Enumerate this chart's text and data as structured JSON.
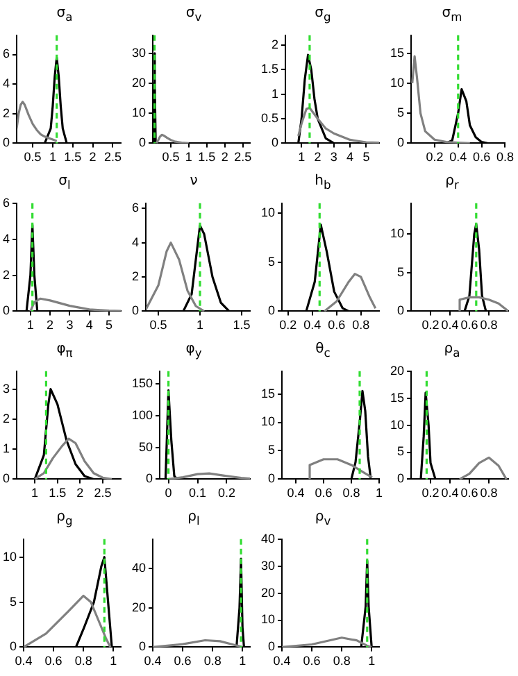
{
  "chart_data": [
    {
      "type": "line",
      "title": "σ$_{a}$",
      "xlim": [
        0.1,
        2.7
      ],
      "xticks": [
        0.5,
        1,
        1.5,
        2,
        2.5
      ],
      "ylim": [
        0,
        7.3
      ],
      "yticks": [
        0,
        2,
        4,
        6
      ],
      "ref_lines": [
        {
          "axis": "x",
          "value": 1.1,
          "color": "#33dd33",
          "line_style": "dashed"
        }
      ],
      "series": [
        {
          "color": "#808080",
          "x": [
            0.1,
            0.15,
            0.2,
            0.25,
            0.3,
            0.4,
            0.5,
            0.6,
            0.7,
            0.8,
            0.9,
            1.0,
            1.1
          ],
          "values": [
            1.0,
            2.0,
            2.6,
            2.8,
            2.6,
            1.9,
            1.3,
            0.9,
            0.6,
            0.45,
            0.35,
            0.25,
            0.15
          ]
        },
        {
          "color": "#000000",
          "x": [
            0.8,
            0.95,
            1.0,
            1.05,
            1.1,
            1.15,
            1.2,
            1.25,
            1.35
          ],
          "values": [
            0,
            1,
            2.5,
            4.5,
            5.8,
            4.5,
            2.5,
            1,
            0
          ]
        }
      ]
    },
    {
      "type": "line",
      "title": "σ$_{v}$",
      "xlim": [
        0,
        2.7
      ],
      "xticks": [
        0.5,
        1,
        1.5,
        2,
        2.5
      ],
      "ylim": [
        0,
        36
      ],
      "yticks": [
        0,
        10,
        20,
        30
      ],
      "ref_lines": [
        {
          "axis": "x",
          "value": 0.05,
          "color": "#33dd33",
          "line_style": "dashed"
        }
      ],
      "series": [
        {
          "color": "#808080",
          "x": [
            0.1,
            0.15,
            0.2,
            0.25,
            0.3,
            0.4,
            0.5,
            0.6,
            0.8,
            1.0
          ],
          "values": [
            0,
            1,
            2.2,
            2.8,
            2.6,
            1.8,
            1.1,
            0.6,
            0.2,
            0
          ]
        },
        {
          "color": "#000000",
          "x": [
            0.02,
            0.04,
            0.05,
            0.06,
            0.08
          ],
          "values": [
            0,
            20,
            30,
            20,
            0
          ]
        }
      ]
    },
    {
      "type": "line",
      "title": "σ$_{g}$",
      "xlim": [
        0,
        5.8
      ],
      "xticks": [
        1,
        2,
        3,
        4,
        5
      ],
      "ylim": [
        0,
        2.2
      ],
      "yticks": [
        0,
        0.5,
        1,
        1.5,
        2
      ],
      "ref_lines": [
        {
          "axis": "x",
          "value": 1.5,
          "color": "#33dd33",
          "line_style": "dashed"
        }
      ],
      "series": [
        {
          "color": "#808080",
          "x": [
            0.8,
            1.0,
            1.3,
            1.5,
            2.0,
            2.5,
            3.0,
            4.0,
            5.0,
            5.8
          ],
          "values": [
            0.15,
            0.4,
            0.7,
            0.72,
            0.5,
            0.3,
            0.2,
            0.07,
            0.02,
            0.01
          ]
        },
        {
          "color": "#000000",
          "x": [
            0.8,
            1.0,
            1.2,
            1.4,
            1.6,
            1.8,
            2.0,
            2.5,
            3.0
          ],
          "values": [
            0,
            0.5,
            1.3,
            1.8,
            1.5,
            0.9,
            0.5,
            0.1,
            0
          ]
        }
      ]
    },
    {
      "type": "line",
      "title": "σ$_{m}$",
      "xlim": [
        0,
        0.8
      ],
      "xticks": [
        0.2,
        0.4,
        0.6,
        0.8
      ],
      "ylim": [
        0,
        18
      ],
      "yticks": [
        0,
        5,
        10,
        15
      ],
      "ref_lines": [
        {
          "axis": "x",
          "value": 0.4,
          "color": "#33dd33",
          "line_style": "dashed"
        }
      ],
      "series": [
        {
          "color": "#808080",
          "x": [
            0.01,
            0.03,
            0.05,
            0.08,
            0.12,
            0.2,
            0.3,
            0.4,
            0.5
          ],
          "values": [
            10,
            14.5,
            11,
            5,
            2,
            0.6,
            0.2,
            0.1,
            0
          ]
        },
        {
          "color": "#000000",
          "x": [
            0.3,
            0.35,
            0.4,
            0.43,
            0.47,
            0.5,
            0.55,
            0.6,
            0.65
          ],
          "values": [
            0,
            0.5,
            5,
            9,
            7,
            3,
            1,
            0.2,
            0
          ]
        }
      ]
    },
    {
      "type": "line",
      "title": "σ$_{l}$",
      "xlim": [
        0.3,
        5.6
      ],
      "xticks": [
        1,
        2,
        3,
        4,
        5
      ],
      "ylim": [
        0,
        6
      ],
      "yticks": [
        0,
        2,
        4,
        6
      ],
      "ref_lines": [
        {
          "axis": "x",
          "value": 1.1,
          "color": "#33dd33",
          "line_style": "dashed"
        }
      ],
      "series": [
        {
          "color": "#808080",
          "x": [
            1.0,
            1.2,
            1.5,
            2.0,
            3.0,
            4.0,
            5.0,
            5.6
          ],
          "values": [
            0,
            0.5,
            0.7,
            0.6,
            0.3,
            0.1,
            0.03,
            0.01
          ]
        },
        {
          "color": "#000000",
          "x": [
            0.8,
            1.0,
            1.1,
            1.2,
            1.35
          ],
          "values": [
            0,
            2,
            4.8,
            2,
            0
          ]
        }
      ]
    },
    {
      "type": "line",
      "title": "ν",
      "xlim": [
        0.35,
        1.6
      ],
      "xticks": [
        0.5,
        1,
        1.5
      ],
      "ylim": [
        0,
        6.3
      ],
      "yticks": [
        0,
        2,
        4,
        6
      ],
      "ref_lines": [
        {
          "axis": "x",
          "value": 1.0,
          "color": "#33dd33",
          "line_style": "dashed"
        }
      ],
      "series": [
        {
          "color": "#808080",
          "x": [
            0.35,
            0.5,
            0.6,
            0.65,
            0.75,
            0.85,
            0.95,
            1.05
          ],
          "values": [
            0.1,
            1.5,
            3.5,
            4,
            3,
            1.2,
            0.3,
            0
          ]
        },
        {
          "color": "#000000",
          "x": [
            0.8,
            0.9,
            0.95,
            1.0,
            1.05,
            1.15,
            1.25,
            1.35
          ],
          "values": [
            0,
            1,
            3,
            5,
            4.5,
            2,
            0.5,
            0
          ]
        }
      ]
    },
    {
      "type": "line",
      "title": "h$_{b}$",
      "xlim": [
        0.15,
        0.95
      ],
      "xticks": [
        0.2,
        0.4,
        0.6,
        0.8
      ],
      "ylim": [
        0,
        11
      ],
      "yticks": [
        0,
        5,
        10
      ],
      "ref_lines": [
        {
          "axis": "x",
          "value": 0.46,
          "color": "#33dd33",
          "line_style": "dashed"
        }
      ],
      "series": [
        {
          "color": "#808080",
          "x": [
            0.5,
            0.6,
            0.7,
            0.75,
            0.8,
            0.87,
            0.92
          ],
          "values": [
            0,
            1,
            3,
            3.8,
            3.5,
            1.5,
            0.3
          ]
        },
        {
          "color": "#000000",
          "x": [
            0.35,
            0.42,
            0.47,
            0.52,
            0.58,
            0.65,
            0.7
          ],
          "values": [
            0,
            3,
            8.8,
            6,
            2,
            0.3,
            0
          ]
        }
      ]
    },
    {
      "type": "line",
      "title": "ρ$_{r}$",
      "xlim": [
        0,
        1
      ],
      "xticks": [
        0.2,
        0.4,
        0.6,
        0.8
      ],
      "ylim": [
        0,
        14
      ],
      "yticks": [
        0,
        5,
        10
      ],
      "ref_lines": [
        {
          "axis": "x",
          "value": 0.67,
          "color": "#33dd33",
          "line_style": "dashed"
        }
      ],
      "series": [
        {
          "color": "#808080",
          "x": [
            0.5,
            0.5,
            0.6,
            0.7,
            0.8,
            0.9,
            1.0
          ],
          "values": [
            0,
            1.5,
            1.8,
            1.8,
            1.5,
            1,
            0
          ]
        },
        {
          "color": "#000000",
          "x": [
            0.55,
            0.6,
            0.65,
            0.67,
            0.7,
            0.73,
            0.77
          ],
          "values": [
            0,
            2,
            10,
            11.3,
            8,
            2,
            0
          ]
        }
      ]
    },
    {
      "type": "line",
      "title": "φ$_{π}$",
      "xlim": [
        0.6,
        2.9
      ],
      "xticks": [
        1,
        1.5,
        2,
        2.5
      ],
      "ylim": [
        0,
        3.6
      ],
      "yticks": [
        0,
        1,
        2,
        3
      ],
      "ref_lines": [
        {
          "axis": "x",
          "value": 1.25,
          "color": "#33dd33",
          "line_style": "dashed"
        }
      ],
      "series": [
        {
          "color": "#808080",
          "x": [
            1.0,
            1.2,
            1.4,
            1.6,
            1.75,
            1.9,
            2.1,
            2.3,
            2.5,
            2.7
          ],
          "values": [
            0,
            0.2,
            0.7,
            1.1,
            1.35,
            1.2,
            0.6,
            0.2,
            0.05,
            0
          ]
        },
        {
          "color": "#000000",
          "x": [
            1.0,
            1.2,
            1.3,
            1.35,
            1.5,
            1.7,
            1.9,
            2.1,
            2.3
          ],
          "values": [
            0,
            0.8,
            2.5,
            3,
            2.5,
            1.3,
            0.5,
            0.1,
            0
          ]
        }
      ]
    },
    {
      "type": "line",
      "title": "φ$_{y}$",
      "xlim": [
        -0.03,
        0.28
      ],
      "xticks": [
        0,
        0.1,
        0.2
      ],
      "ylim": [
        0,
        170
      ],
      "yticks": [
        0,
        50,
        100,
        150
      ],
      "ref_lines": [
        {
          "axis": "x",
          "value": 0,
          "color": "#33dd33",
          "line_style": "dashed"
        }
      ],
      "series": [
        {
          "color": "#808080",
          "x": [
            0,
            0.05,
            0.1,
            0.14,
            0.2,
            0.25,
            0.28
          ],
          "values": [
            0,
            3,
            8,
            9,
            5,
            2,
            1
          ]
        },
        {
          "color": "#000000",
          "x": [
            -0.01,
            0,
            0.01,
            0.02,
            0.03
          ],
          "values": [
            0,
            140,
            60,
            5,
            0
          ]
        }
      ]
    },
    {
      "type": "line",
      "title": "θ$_{c}$",
      "xlim": [
        0.3,
        1.0
      ],
      "xticks": [
        0.4,
        0.6,
        0.8,
        1
      ],
      "ylim": [
        0,
        19
      ],
      "yticks": [
        0,
        5,
        10,
        15
      ],
      "ref_lines": [
        {
          "axis": "x",
          "value": 0.86,
          "color": "#33dd33",
          "line_style": "dashed"
        }
      ],
      "series": [
        {
          "color": "#808080",
          "x": [
            0.5,
            0.5,
            0.6,
            0.7,
            0.8,
            0.9,
            0.95
          ],
          "values": [
            0,
            2.5,
            3.5,
            3.5,
            2.5,
            1,
            0.3
          ]
        },
        {
          "color": "#000000",
          "x": [
            0.8,
            0.83,
            0.86,
            0.88,
            0.9,
            0.92,
            0.94
          ],
          "values": [
            0,
            3,
            10,
            15.5,
            12,
            4,
            0
          ]
        }
      ]
    },
    {
      "type": "line",
      "title": "ρ$_{a}$",
      "xlim": [
        0,
        1
      ],
      "xticks": [
        0.2,
        0.4,
        0.6,
        0.8
      ],
      "ylim": [
        0,
        20
      ],
      "yticks": [
        0,
        5,
        10,
        15,
        20
      ],
      "ref_lines": [
        {
          "axis": "x",
          "value": 0.16,
          "color": "#33dd33",
          "line_style": "dashed"
        }
      ],
      "series": [
        {
          "color": "#808080",
          "x": [
            0.5,
            0.6,
            0.7,
            0.8,
            0.9,
            0.98
          ],
          "values": [
            0,
            1,
            3,
            4,
            2.5,
            0
          ]
        },
        {
          "color": "#000000",
          "x": [
            0.1,
            0.13,
            0.15,
            0.18,
            0.2,
            0.25
          ],
          "values": [
            0,
            8,
            16,
            10,
            3,
            0
          ]
        }
      ]
    },
    {
      "type": "line",
      "title": "ρ$_{g}$",
      "xlim": [
        0.4,
        1.05
      ],
      "xticks": [
        0.4,
        0.6,
        0.8,
        1
      ],
      "ylim": [
        0,
        12
      ],
      "yticks": [
        0,
        5,
        10
      ],
      "ref_lines": [
        {
          "axis": "x",
          "value": 0.94,
          "color": "#33dd33",
          "line_style": "dashed"
        }
      ],
      "series": [
        {
          "color": "#808080",
          "x": [
            0.4,
            0.55,
            0.7,
            0.8,
            0.85,
            0.9,
            0.95,
            0.98
          ],
          "values": [
            0,
            1.5,
            4,
            5.7,
            5,
            3,
            1,
            0
          ]
        },
        {
          "color": "#000000",
          "x": [
            0.75,
            0.8,
            0.87,
            0.92,
            0.94,
            0.97,
            0.99
          ],
          "values": [
            0,
            2,
            5,
            9,
            10,
            4,
            0
          ]
        }
      ]
    },
    {
      "type": "line",
      "title": "ρ$_{l}$",
      "xlim": [
        0.4,
        1.05
      ],
      "xticks": [
        0.4,
        0.6,
        0.8,
        1
      ],
      "ylim": [
        0,
        55
      ],
      "yticks": [
        0,
        20,
        40
      ],
      "ref_lines": [
        {
          "axis": "x",
          "value": 0.99,
          "color": "#33dd33",
          "line_style": "dashed"
        }
      ],
      "series": [
        {
          "color": "#808080",
          "x": [
            0.4,
            0.6,
            0.75,
            0.85,
            0.95,
            1.0
          ],
          "values": [
            0,
            1.5,
            3.5,
            3,
            1,
            0
          ]
        },
        {
          "color": "#000000",
          "x": [
            0.96,
            0.98,
            0.99,
            1.0,
            1.01
          ],
          "values": [
            0,
            20,
            45,
            10,
            0
          ]
        }
      ]
    },
    {
      "type": "line",
      "title": "ρ$_{v}$",
      "xlim": [
        0.4,
        1.05
      ],
      "xticks": [
        0.4,
        0.6,
        0.8,
        1
      ],
      "ylim": [
        0,
        40
      ],
      "yticks": [
        0,
        10,
        20,
        30,
        40
      ],
      "ref_lines": [
        {
          "axis": "x",
          "value": 0.97,
          "color": "#33dd33",
          "line_style": "dashed"
        }
      ],
      "series": [
        {
          "color": "#808080",
          "x": [
            0.4,
            0.6,
            0.8,
            0.9,
            0.97,
            1.0
          ],
          "values": [
            0,
            1,
            3.5,
            2.5,
            0.5,
            0
          ]
        },
        {
          "color": "#000000",
          "x": [
            0.93,
            0.96,
            0.97,
            0.98,
            1.0
          ],
          "values": [
            0,
            15,
            32,
            15,
            0
          ]
        }
      ]
    }
  ]
}
